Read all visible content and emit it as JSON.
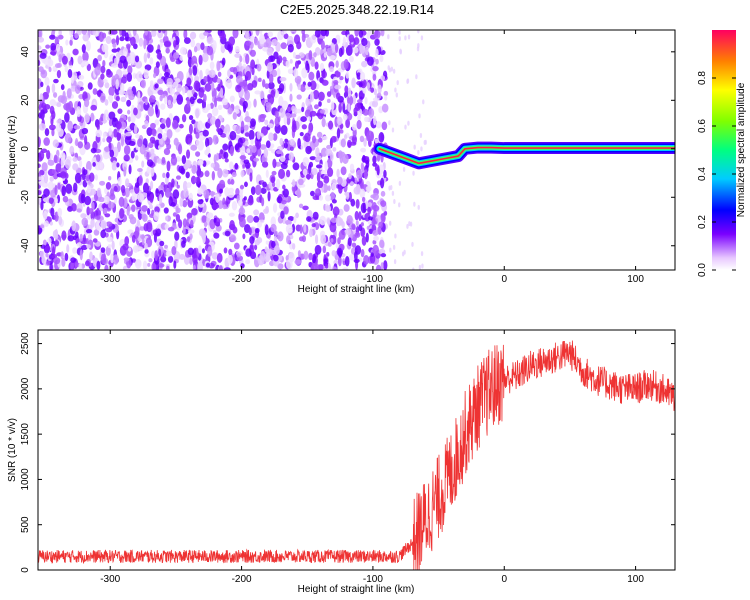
{
  "title": "C2E5.2025.348.22.19.R14",
  "chart_data": [
    {
      "type": "heatmap",
      "xlabel": "Height of straight line (km)",
      "ylabel": "Frequency (Hz)",
      "xlim": [
        -355,
        130
      ],
      "ylim": [
        -50,
        49
      ],
      "xticks": [
        -300,
        -200,
        -100,
        0,
        100
      ],
      "yticks": [
        -40,
        -20,
        0,
        20,
        40
      ],
      "noise_region_x": [
        -355,
        -90
      ],
      "signal_track": {
        "x": [
          -95,
          -85,
          -75,
          -65,
          -55,
          -45,
          -35,
          -30,
          -20,
          -10,
          0,
          20,
          50,
          80,
          110,
          130
        ],
        "y": [
          0,
          -2,
          -4,
          -6,
          -5,
          -4,
          -3,
          0,
          0.5,
          0.5,
          0.3,
          0.3,
          0.3,
          0.3,
          0.3,
          0.3
        ]
      },
      "colorbar": {
        "label": "Normalized spectral amplitude",
        "range": [
          0,
          1
        ],
        "ticks": [
          0.0,
          0.2,
          0.4,
          0.6,
          0.8
        ]
      }
    },
    {
      "type": "line",
      "xlabel": "Height of straight line (km)",
      "ylabel": "SNR (10 * v/v)",
      "xlim": [
        -355,
        130
      ],
      "ylim": [
        0,
        2650
      ],
      "xticks": [
        -300,
        -200,
        -100,
        0,
        100
      ],
      "yticks": [
        0,
        500,
        1000,
        1500,
        2000,
        2500
      ],
      "color": "#ee3333",
      "series": [
        {
          "x": [
            -355,
            -300,
            -250,
            -200,
            -150,
            -100,
            -80,
            -70,
            -60,
            -50,
            -40,
            -30,
            -20,
            -10,
            0,
            10,
            20,
            30,
            40,
            50,
            60,
            70,
            80,
            90,
            100,
            110,
            120,
            130
          ],
          "y": [
            150,
            150,
            150,
            150,
            150,
            150,
            150,
            300,
            550,
            800,
            1100,
            1500,
            1800,
            2000,
            2100,
            2150,
            2250,
            2300,
            2350,
            2400,
            2200,
            2100,
            2050,
            2000,
            2000,
            2050,
            2000,
            1900
          ]
        }
      ]
    }
  ]
}
